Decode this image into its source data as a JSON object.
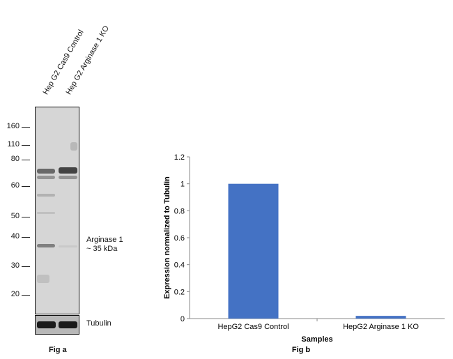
{
  "western_blot": {
    "lanes": [
      "Hep G2 Cas9 Control",
      "Hep G2 Arginase 1 KO"
    ],
    "mw_markers": [
      "160",
      "110",
      "80",
      "60",
      "50",
      "40",
      "30",
      "20"
    ],
    "target_label_line1": "Arginase 1",
    "target_label_line2": "~ 35 kDa",
    "loading_control": "Tubulin",
    "fig_label": "Fig a"
  },
  "chart_data": {
    "type": "bar",
    "categories": [
      "HepG2 Cas9 Control",
      "HepG2 Arginase 1 KO"
    ],
    "values": [
      1.0,
      0.02
    ],
    "xlabel": "Samples",
    "ylabel": "Expression normalized to Tubulin",
    "ylim": [
      0,
      1.2
    ],
    "yticks": [
      "0",
      "0.2",
      "0.4",
      "0.6",
      "0.8",
      "1",
      "1.2"
    ],
    "bar_color": "#4472C4",
    "grid": false,
    "fig_label": "Fig b"
  }
}
